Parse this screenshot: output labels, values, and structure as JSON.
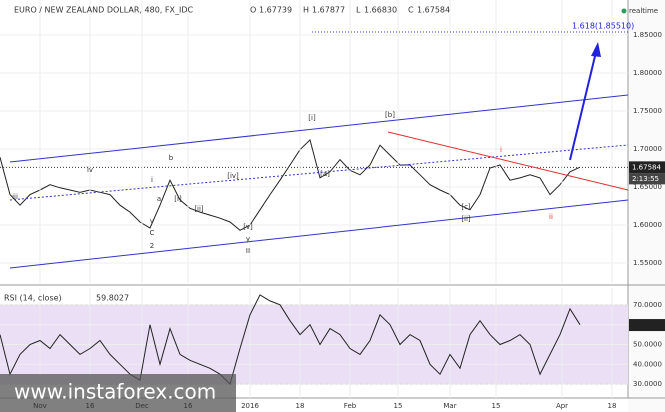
{
  "header": {
    "title": "EURO / NEW ZEALAND DOLLAR, 480, FX_IDC",
    "ohlc": [
      {
        "label": "O",
        "value": "1.67739"
      },
      {
        "label": "H",
        "value": "1.67877"
      },
      {
        "label": "L",
        "value": "1.66830"
      },
      {
        "label": "C",
        "value": "1.67584"
      }
    ],
    "status": "realtime"
  },
  "watermark": "www.instaforex.com",
  "chart_data": [
    {
      "type": "line",
      "color": "#222222",
      "x": [
        0,
        1,
        2,
        3,
        4,
        5,
        6,
        7,
        8,
        9,
        10,
        11,
        12,
        13,
        14,
        15,
        16,
        17,
        18,
        19,
        20,
        21,
        22,
        23,
        24,
        25,
        26,
        27,
        28,
        29,
        30,
        31,
        32,
        33,
        34,
        35,
        36,
        37,
        38,
        39,
        40,
        41,
        42,
        43,
        44,
        45,
        46,
        47,
        48,
        49,
        50,
        51,
        52,
        53,
        54,
        55,
        56,
        57,
        58
      ],
      "values": [
        1.689,
        1.64,
        1.626,
        1.64,
        1.646,
        1.653,
        1.649,
        1.646,
        1.643,
        1.646,
        1.643,
        1.64,
        1.626,
        1.617,
        1.604,
        1.596,
        1.626,
        1.659,
        1.633,
        1.622,
        1.617,
        1.613,
        1.609,
        1.604,
        1.593,
        1.6,
        1.62,
        1.64,
        1.659,
        1.679,
        1.699,
        1.712,
        1.662,
        1.67,
        1.686,
        1.672,
        1.666,
        1.679,
        1.705,
        1.692,
        1.679,
        1.679,
        1.666,
        1.653,
        1.646,
        1.64,
        1.626,
        1.62,
        1.64,
        1.675,
        1.679,
        1.659,
        1.662,
        1.666,
        1.662,
        1.64,
        1.653,
        1.67,
        1.676
      ],
      "xlim": [
        0,
        62.8
      ],
      "ylim": [
        1.5237,
        1.896
      ],
      "yticks": [
        {
          "value": 1.55,
          "label": "1.55000"
        },
        {
          "value": 1.6,
          "label": "1.60000"
        },
        {
          "value": 1.65,
          "label": "1.65000"
        },
        {
          "value": 1.7,
          "label": "1.70000"
        },
        {
          "value": 1.75,
          "label": "1.75000"
        },
        {
          "value": 1.8,
          "label": "1.80000"
        },
        {
          "value": 1.85,
          "label": "1.85000"
        }
      ],
      "last_price": 1.67584,
      "countdown": "2:13:55",
      "target_label": "1.618(1.85510)",
      "annotations": [
        "iii",
        "iv",
        "b",
        "i",
        "a",
        "[i]",
        "[ii]",
        "[iv]",
        "v",
        "C",
        "2",
        "[v]",
        "y",
        "II",
        "[i]",
        "[a]",
        "[b]",
        "[c]",
        "[ii]",
        "i",
        "ii"
      ]
    },
    {
      "type": "line",
      "title": "RSI (14, close)",
      "color": "#222222",
      "last_value": 59.8027,
      "x": [
        0,
        1,
        2,
        3,
        4,
        5,
        6,
        7,
        8,
        9,
        10,
        11,
        12,
        13,
        14,
        15,
        16,
        17,
        18,
        19,
        20,
        21,
        22,
        23,
        24,
        25,
        26,
        27,
        28,
        29,
        30,
        31,
        32,
        33,
        34,
        35,
        36,
        37,
        38,
        39,
        40,
        41,
        42,
        43,
        44,
        45,
        46,
        47,
        48,
        49,
        50,
        51,
        52,
        53,
        54,
        55,
        56,
        57,
        58
      ],
      "values": [
        55,
        35,
        45,
        50,
        52,
        48,
        55,
        50,
        45,
        48,
        52,
        45,
        40,
        35,
        32,
        60,
        40,
        58,
        45,
        42,
        40,
        38,
        35,
        30,
        48,
        65,
        75,
        72,
        70,
        62,
        55,
        60,
        50,
        58,
        55,
        48,
        45,
        52,
        65,
        60,
        50,
        55,
        52,
        40,
        35,
        45,
        38,
        55,
        62,
        55,
        50,
        52,
        55,
        50,
        35,
        45,
        55,
        68,
        60
      ],
      "band": [
        30,
        70
      ],
      "band_color": "#ebdff6",
      "xlim": [
        0,
        62.8
      ],
      "ylim": [
        23,
        78.5
      ],
      "yticks": [
        {
          "value": 30,
          "label": "30.0000"
        },
        {
          "value": 40,
          "label": "40.0000"
        },
        {
          "value": 50,
          "label": "50.0000"
        },
        {
          "value": 60,
          "label": "60.0000"
        },
        {
          "value": 70,
          "label": "70.0000"
        }
      ],
      "xticks": [
        {
          "value": 4,
          "label": "Nov"
        },
        {
          "value": 9,
          "label": "16"
        },
        {
          "value": 14.2,
          "label": "Dec"
        },
        {
          "value": 18.8,
          "label": "16"
        },
        {
          "value": 25,
          "label": "2016"
        },
        {
          "value": 30,
          "label": "18"
        },
        {
          "value": 35,
          "label": "Feb"
        },
        {
          "value": 39.8,
          "label": "15"
        },
        {
          "value": 45,
          "label": "Mar"
        },
        {
          "value": 49.6,
          "label": "15"
        },
        {
          "value": 56.2,
          "label": "Apr"
        },
        {
          "value": 61.2,
          "label": "18"
        }
      ]
    }
  ]
}
